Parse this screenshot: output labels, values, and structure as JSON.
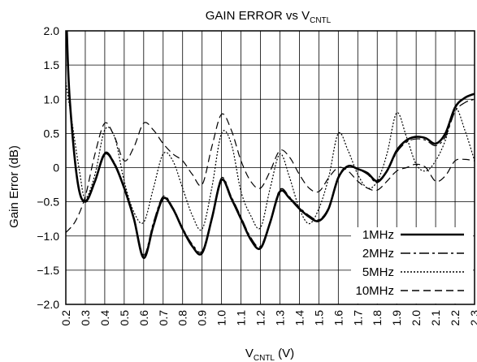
{
  "chart_data": {
    "type": "line",
    "title": "GAIN ERROR vs V",
    "title_sub": "CNTL",
    "xlabel": "V",
    "xlabel_sub": "CNTL",
    "xlabel_unit": " (V)",
    "ylabel": "Gain Error (dB)",
    "xlim": [
      0.2,
      2.3
    ],
    "ylim": [
      -2.0,
      2.0
    ],
    "x_ticks": [
      "0.2",
      "0.3",
      "0.4",
      "0.5",
      "0.6",
      "0.7",
      "0.8",
      "0.9",
      "1.0",
      "1.1",
      "1.2",
      "1.3",
      "1.4",
      "1.5",
      "1.6",
      "1.7",
      "1.8",
      "1.9",
      "2.0",
      "2.1",
      "2.2",
      "2.3"
    ],
    "y_ticks": [
      "2.0",
      "1.5",
      "1.0",
      "0.5",
      "0",
      "−0.5",
      "−1.0",
      "−1.5",
      "−2.0"
    ],
    "grid": true,
    "legend_position": "bottom-right",
    "series": [
      {
        "name": "1MHz",
        "style": "solid",
        "points": [
          [
            0.205,
            2.0
          ],
          [
            0.22,
            1.0
          ],
          [
            0.26,
            -0.2
          ],
          [
            0.3,
            -0.5
          ],
          [
            0.35,
            -0.2
          ],
          [
            0.4,
            0.2
          ],
          [
            0.45,
            0.05
          ],
          [
            0.5,
            -0.3
          ],
          [
            0.55,
            -0.75
          ],
          [
            0.6,
            -1.32
          ],
          [
            0.65,
            -0.85
          ],
          [
            0.7,
            -0.45
          ],
          [
            0.75,
            -0.6
          ],
          [
            0.8,
            -0.9
          ],
          [
            0.85,
            -1.15
          ],
          [
            0.9,
            -1.25
          ],
          [
            0.95,
            -0.75
          ],
          [
            1.0,
            -0.18
          ],
          [
            1.05,
            -0.45
          ],
          [
            1.1,
            -0.75
          ],
          [
            1.15,
            -1.05
          ],
          [
            1.2,
            -1.18
          ],
          [
            1.25,
            -0.8
          ],
          [
            1.3,
            -0.35
          ],
          [
            1.35,
            -0.45
          ],
          [
            1.4,
            -0.6
          ],
          [
            1.45,
            -0.72
          ],
          [
            1.5,
            -0.78
          ],
          [
            1.55,
            -0.6
          ],
          [
            1.6,
            -0.15
          ],
          [
            1.65,
            0.02
          ],
          [
            1.7,
            -0.02
          ],
          [
            1.75,
            -0.08
          ],
          [
            1.8,
            -0.2
          ],
          [
            1.85,
            -0.05
          ],
          [
            1.9,
            0.25
          ],
          [
            1.95,
            0.4
          ],
          [
            2.0,
            0.45
          ],
          [
            2.05,
            0.43
          ],
          [
            2.1,
            0.35
          ],
          [
            2.15,
            0.5
          ],
          [
            2.2,
            0.88
          ],
          [
            2.25,
            1.02
          ],
          [
            2.3,
            1.08
          ]
        ]
      },
      {
        "name": "2MHz",
        "style": "dash-dot",
        "points": [
          [
            0.205,
            2.0
          ],
          [
            0.22,
            1.0
          ],
          [
            0.26,
            -0.2
          ],
          [
            0.3,
            -0.48
          ],
          [
            0.35,
            -0.18
          ],
          [
            0.4,
            0.22
          ],
          [
            0.45,
            0.07
          ],
          [
            0.5,
            -0.28
          ],
          [
            0.55,
            -0.72
          ],
          [
            0.6,
            -1.28
          ],
          [
            0.65,
            -0.8
          ],
          [
            0.7,
            -0.42
          ],
          [
            0.75,
            -0.58
          ],
          [
            0.8,
            -0.88
          ],
          [
            0.85,
            -1.12
          ],
          [
            0.9,
            -1.22
          ],
          [
            0.95,
            -0.72
          ],
          [
            1.0,
            -0.15
          ],
          [
            1.05,
            -0.42
          ],
          [
            1.1,
            -0.72
          ],
          [
            1.15,
            -1.02
          ],
          [
            1.2,
            -1.15
          ],
          [
            1.25,
            -0.78
          ],
          [
            1.3,
            -0.32
          ],
          [
            1.35,
            -0.43
          ],
          [
            1.4,
            -0.58
          ],
          [
            1.45,
            -0.7
          ],
          [
            1.5,
            -0.76
          ],
          [
            1.55,
            -0.58
          ],
          [
            1.6,
            -0.13
          ],
          [
            1.65,
            0.03
          ],
          [
            1.7,
            -0.02
          ],
          [
            1.75,
            -0.1
          ],
          [
            1.8,
            -0.22
          ],
          [
            1.85,
            -0.06
          ],
          [
            1.9,
            0.22
          ],
          [
            1.95,
            0.37
          ],
          [
            2.0,
            0.42
          ],
          [
            2.05,
            0.4
          ],
          [
            2.1,
            0.32
          ],
          [
            2.15,
            0.45
          ],
          [
            2.2,
            0.82
          ],
          [
            2.25,
            0.95
          ],
          [
            2.3,
            1.0
          ]
        ]
      },
      {
        "name": "5MHz",
        "style": "dotted",
        "points": [
          [
            0.2,
            1.25
          ],
          [
            0.23,
            0.7
          ],
          [
            0.27,
            -0.05
          ],
          [
            0.3,
            -0.45
          ],
          [
            0.35,
            -0.1
          ],
          [
            0.4,
            0.55
          ],
          [
            0.45,
            0.45
          ],
          [
            0.5,
            -0.2
          ],
          [
            0.55,
            -0.65
          ],
          [
            0.6,
            -0.8
          ],
          [
            0.65,
            -0.3
          ],
          [
            0.7,
            0.2
          ],
          [
            0.75,
            0.1
          ],
          [
            0.8,
            -0.3
          ],
          [
            0.85,
            -0.7
          ],
          [
            0.9,
            -0.9
          ],
          [
            0.95,
            -0.3
          ],
          [
            1.0,
            0.5
          ],
          [
            1.05,
            0.35
          ],
          [
            1.1,
            -0.35
          ],
          [
            1.15,
            -0.7
          ],
          [
            1.2,
            -0.88
          ],
          [
            1.25,
            -0.3
          ],
          [
            1.3,
            0.2
          ],
          [
            1.35,
            -0.15
          ],
          [
            1.4,
            -0.6
          ],
          [
            1.45,
            -0.82
          ],
          [
            1.5,
            -0.6
          ],
          [
            1.55,
            -0.15
          ],
          [
            1.6,
            0.5
          ],
          [
            1.65,
            0.25
          ],
          [
            1.7,
            -0.1
          ],
          [
            1.75,
            -0.3
          ],
          [
            1.8,
            -0.2
          ],
          [
            1.85,
            0.2
          ],
          [
            1.9,
            0.8
          ],
          [
            1.95,
            0.45
          ],
          [
            2.0,
            0.05
          ],
          [
            2.05,
            -0.05
          ],
          [
            2.1,
            0.1
          ],
          [
            2.15,
            0.4
          ],
          [
            2.2,
            0.87
          ],
          [
            2.25,
            0.55
          ],
          [
            2.3,
            0.1
          ]
        ]
      },
      {
        "name": "10MHz",
        "style": "dashed",
        "points": [
          [
            0.2,
            -0.95
          ],
          [
            0.25,
            -0.78
          ],
          [
            0.3,
            -0.42
          ],
          [
            0.35,
            0.2
          ],
          [
            0.4,
            0.65
          ],
          [
            0.45,
            0.45
          ],
          [
            0.5,
            0.1
          ],
          [
            0.55,
            0.3
          ],
          [
            0.6,
            0.65
          ],
          [
            0.65,
            0.55
          ],
          [
            0.7,
            0.35
          ],
          [
            0.75,
            0.2
          ],
          [
            0.8,
            0.1
          ],
          [
            0.85,
            -0.1
          ],
          [
            0.9,
            -0.25
          ],
          [
            0.95,
            0.3
          ],
          [
            1.0,
            0.78
          ],
          [
            1.05,
            0.55
          ],
          [
            1.1,
            0.1
          ],
          [
            1.15,
            -0.2
          ],
          [
            1.2,
            -0.3
          ],
          [
            1.25,
            -0.05
          ],
          [
            1.3,
            0.25
          ],
          [
            1.35,
            0.15
          ],
          [
            1.4,
            -0.1
          ],
          [
            1.45,
            -0.3
          ],
          [
            1.5,
            -0.35
          ],
          [
            1.55,
            -0.15
          ],
          [
            1.6,
            0.0
          ],
          [
            1.65,
            -0.05
          ],
          [
            1.7,
            -0.2
          ],
          [
            1.75,
            -0.3
          ],
          [
            1.8,
            -0.33
          ],
          [
            1.85,
            -0.2
          ],
          [
            1.9,
            -0.05
          ],
          [
            1.95,
            0.0
          ],
          [
            2.0,
            0.05
          ],
          [
            2.05,
            0.0
          ],
          [
            2.1,
            -0.2
          ],
          [
            2.15,
            -0.12
          ],
          [
            2.2,
            0.1
          ],
          [
            2.25,
            0.12
          ],
          [
            2.3,
            0.1
          ]
        ]
      }
    ]
  }
}
